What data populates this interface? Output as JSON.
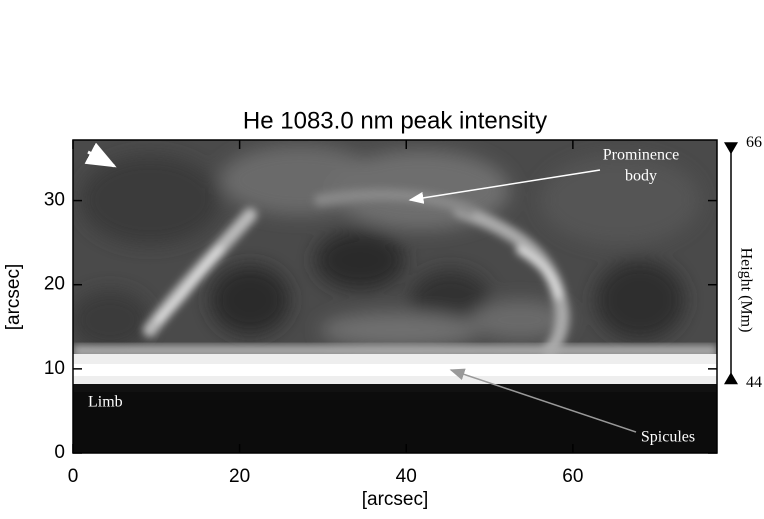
{
  "chart_data": {
    "type": "image",
    "title": "He 1083.0 nm peak intensity",
    "xlabel": "[arcsec]",
    "ylabel": "[arcsec]",
    "y2label": "Height (Mm)",
    "xlim": [
      0,
      77.3
    ],
    "ylim": [
      0,
      37.2
    ],
    "y2lim": [
      37.6,
      66.3
    ],
    "xticks": [
      0,
      20,
      40,
      60
    ],
    "yticks": [
      0,
      10,
      20,
      30
    ],
    "y2ticks": [
      44,
      66
    ],
    "annotations": [
      {
        "lines": [
          "Prominence",
          "body"
        ]
      },
      {
        "lines": [
          "Spicules"
        ]
      },
      {
        "lines": [
          "Limb"
        ]
      }
    ]
  }
}
